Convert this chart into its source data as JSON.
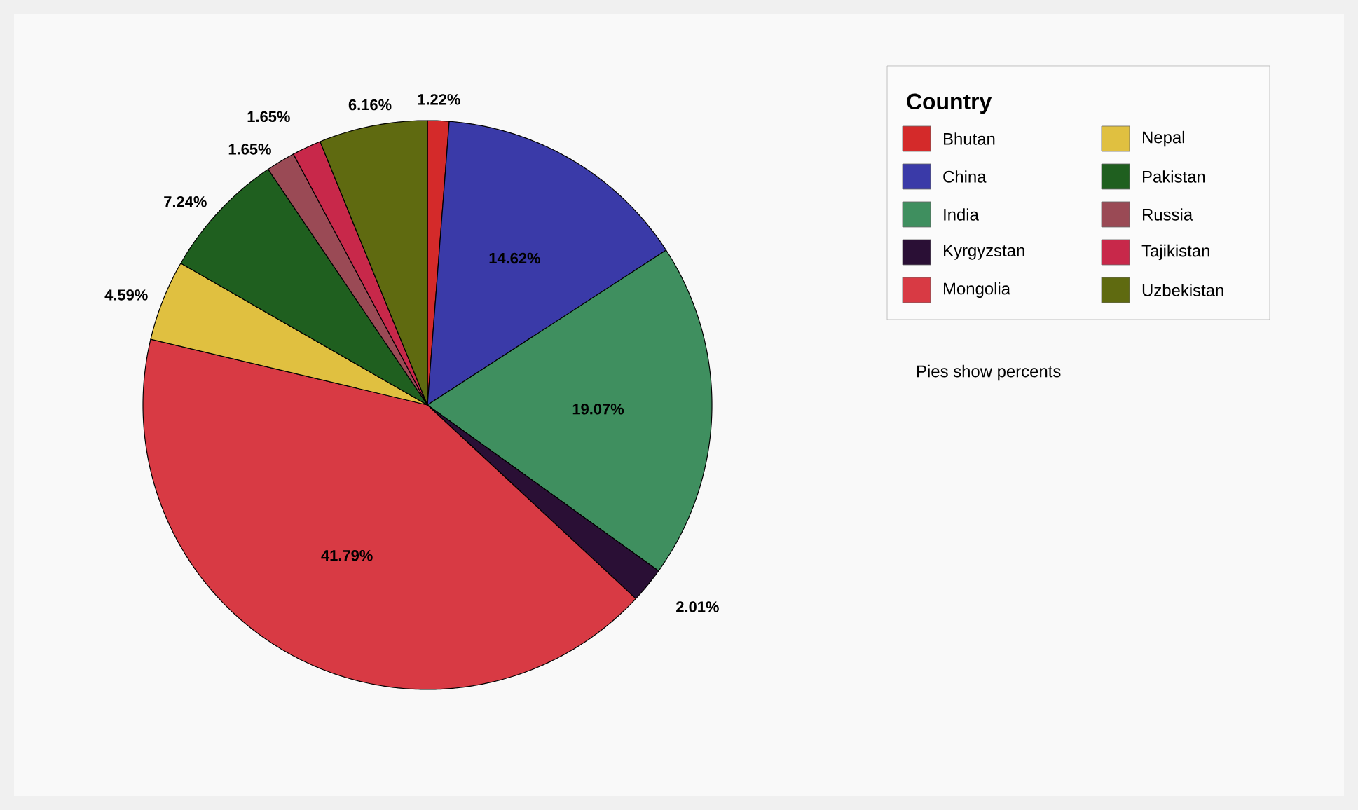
{
  "chart_data": {
    "type": "pie",
    "legend_title": "Country",
    "legend": "top right",
    "data_labels": true,
    "categories": [
      "Bhutan",
      "China",
      "India",
      "Kyrgyzstan",
      "Mongolia",
      "Nepal",
      "Pakistan",
      "Russia",
      "Tajikistan",
      "Uzbekistan"
    ],
    "values": [
      1.22,
      14.62,
      19.07,
      2.01,
      41.79,
      4.59,
      7.24,
      1.65,
      1.65,
      6.16
    ],
    "value_labels": [
      "1.22%",
      "14.62%",
      "19.07%",
      "2.01%",
      "41.79%",
      "4.59%",
      "7.24%",
      "1.65%",
      "1.65%",
      "6.16%"
    ],
    "colors": [
      "#d42a2a",
      "#3a3aa8",
      "#3f8f5f",
      "#2a0f35",
      "#d83a44",
      "#e0c040",
      "#1f5f1f",
      "#9a4a55",
      "#c8284a",
      "#5f6a10"
    ],
    "annotations": [
      "Pies show percents"
    ]
  }
}
